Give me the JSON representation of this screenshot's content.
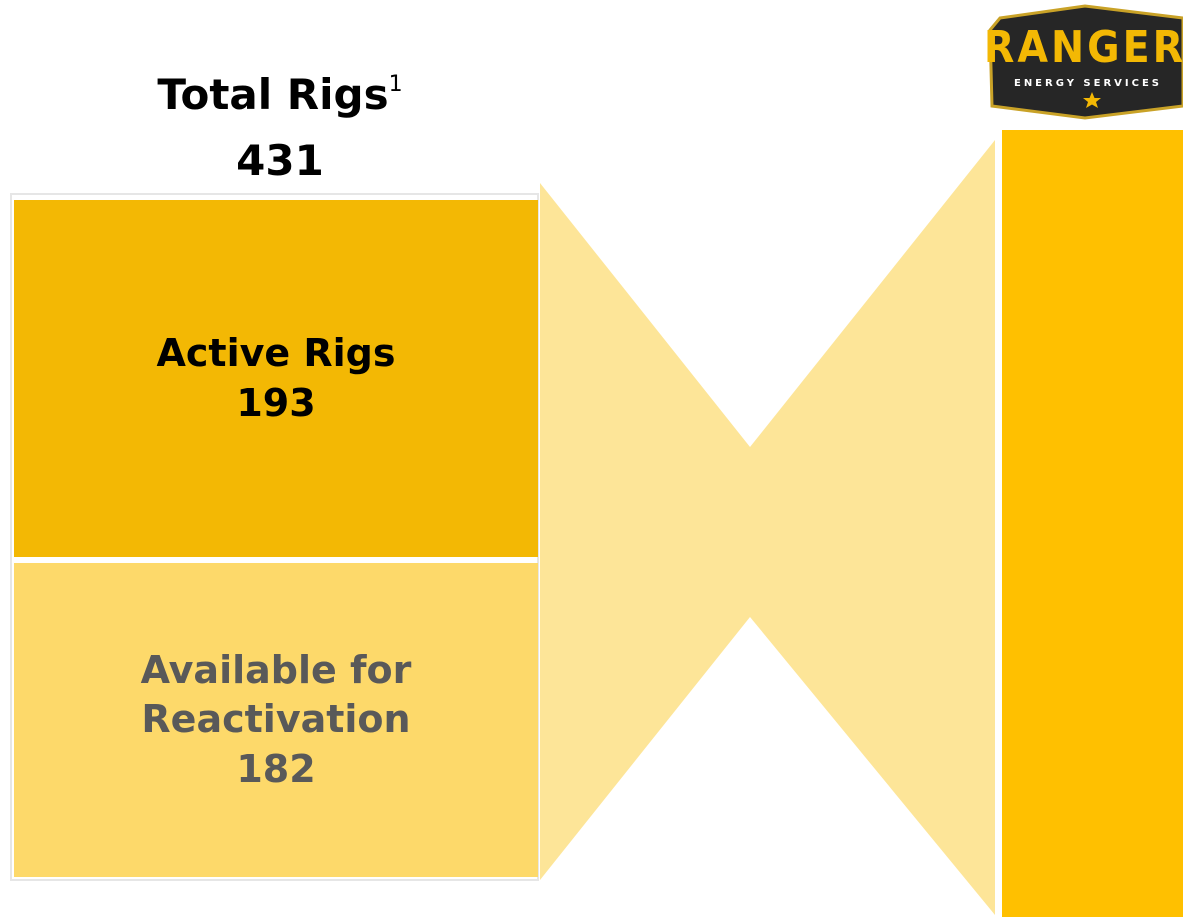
{
  "header": {
    "title": "Total Rigs",
    "footnote_marker": "1",
    "total": 431
  },
  "segments": [
    {
      "label": "Active Rigs",
      "value": 193
    },
    {
      "label": "Available for Reactivation",
      "value": 182
    }
  ],
  "logo": {
    "name": "RANGER",
    "tagline": "ENERGY SERVICES"
  }
}
